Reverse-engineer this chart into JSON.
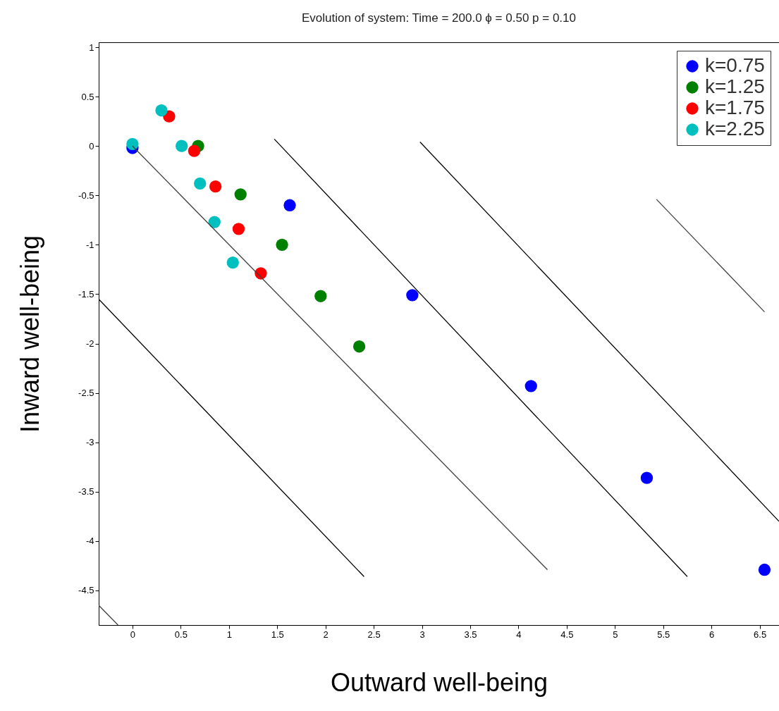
{
  "chart_data": {
    "type": "scatter",
    "title": "Evolution of system: Time =  200.0  ϕ =  0.50  p =  0.10",
    "xlabel": "Outward well-being",
    "ylabel": "Inward well-being",
    "xlim": [
      -0.35,
      6.7
    ],
    "ylim": [
      -4.85,
      1.05
    ],
    "xticks": [
      0,
      0.5,
      1,
      1.5,
      2,
      2.5,
      3,
      3.5,
      4,
      4.5,
      5,
      5.5,
      6,
      6.5
    ],
    "yticks": [
      -4.5,
      -4,
      -3.5,
      -3,
      -2.5,
      -2,
      -1.5,
      -1,
      -0.5,
      0,
      0.5,
      1
    ],
    "grid": false,
    "legend": "top right",
    "marker": "circle",
    "series": [
      {
        "type": "line",
        "marker": "none",
        "color": "#000000",
        "x": [
          -0.35,
          2.4
        ],
        "values": [
          -1.55,
          -4.36
        ]
      },
      {
        "type": "line",
        "marker": "none",
        "color": "#404040",
        "x": [
          0,
          4.3
        ],
        "values": [
          0,
          -4.29
        ]
      },
      {
        "type": "line",
        "marker": "none",
        "color": "#000000",
        "x": [
          1.47,
          5.75
        ],
        "values": [
          0.07,
          -4.36
        ]
      },
      {
        "type": "line",
        "marker": "none",
        "color": "#000000",
        "x": [
          2.98,
          6.7
        ],
        "values": [
          0.04,
          -3.8
        ]
      },
      {
        "type": "line",
        "marker": "none",
        "color": "#404040",
        "x": [
          5.43,
          6.55
        ],
        "values": [
          -0.54,
          -1.68
        ]
      },
      {
        "type": "line",
        "marker": "none",
        "color": "#404040",
        "x": [
          -0.35,
          -0.15
        ],
        "values": [
          -4.65,
          -4.85
        ]
      },
      {
        "name": "k=0.75",
        "color": "#0000ff",
        "x": [
          0,
          1.63,
          2.9,
          4.13,
          5.33,
          6.55
        ],
        "values": [
          -0.02,
          -0.6,
          -1.51,
          -2.43,
          -3.36,
          -4.29
        ]
      },
      {
        "name": "k=1.25",
        "color": "#008000",
        "x": [
          0.68,
          1.12,
          1.55,
          1.95,
          2.35
        ],
        "values": [
          0,
          -0.49,
          -1.0,
          -1.52,
          -2.03
        ]
      },
      {
        "name": "k=1.75",
        "color": "#ff0000",
        "x": [
          0.38,
          0.64,
          0.86,
          1.1,
          1.33
        ],
        "values": [
          0.3,
          -0.05,
          -0.41,
          -0.84,
          -1.29
        ]
      },
      {
        "name": "k=2.25",
        "color": "#00bfbf",
        "x": [
          0,
          0.3,
          0.51,
          0.7,
          0.85,
          1.04
        ],
        "values": [
          0.02,
          0.36,
          0,
          -0.38,
          -0.77,
          -1.18
        ]
      }
    ]
  }
}
